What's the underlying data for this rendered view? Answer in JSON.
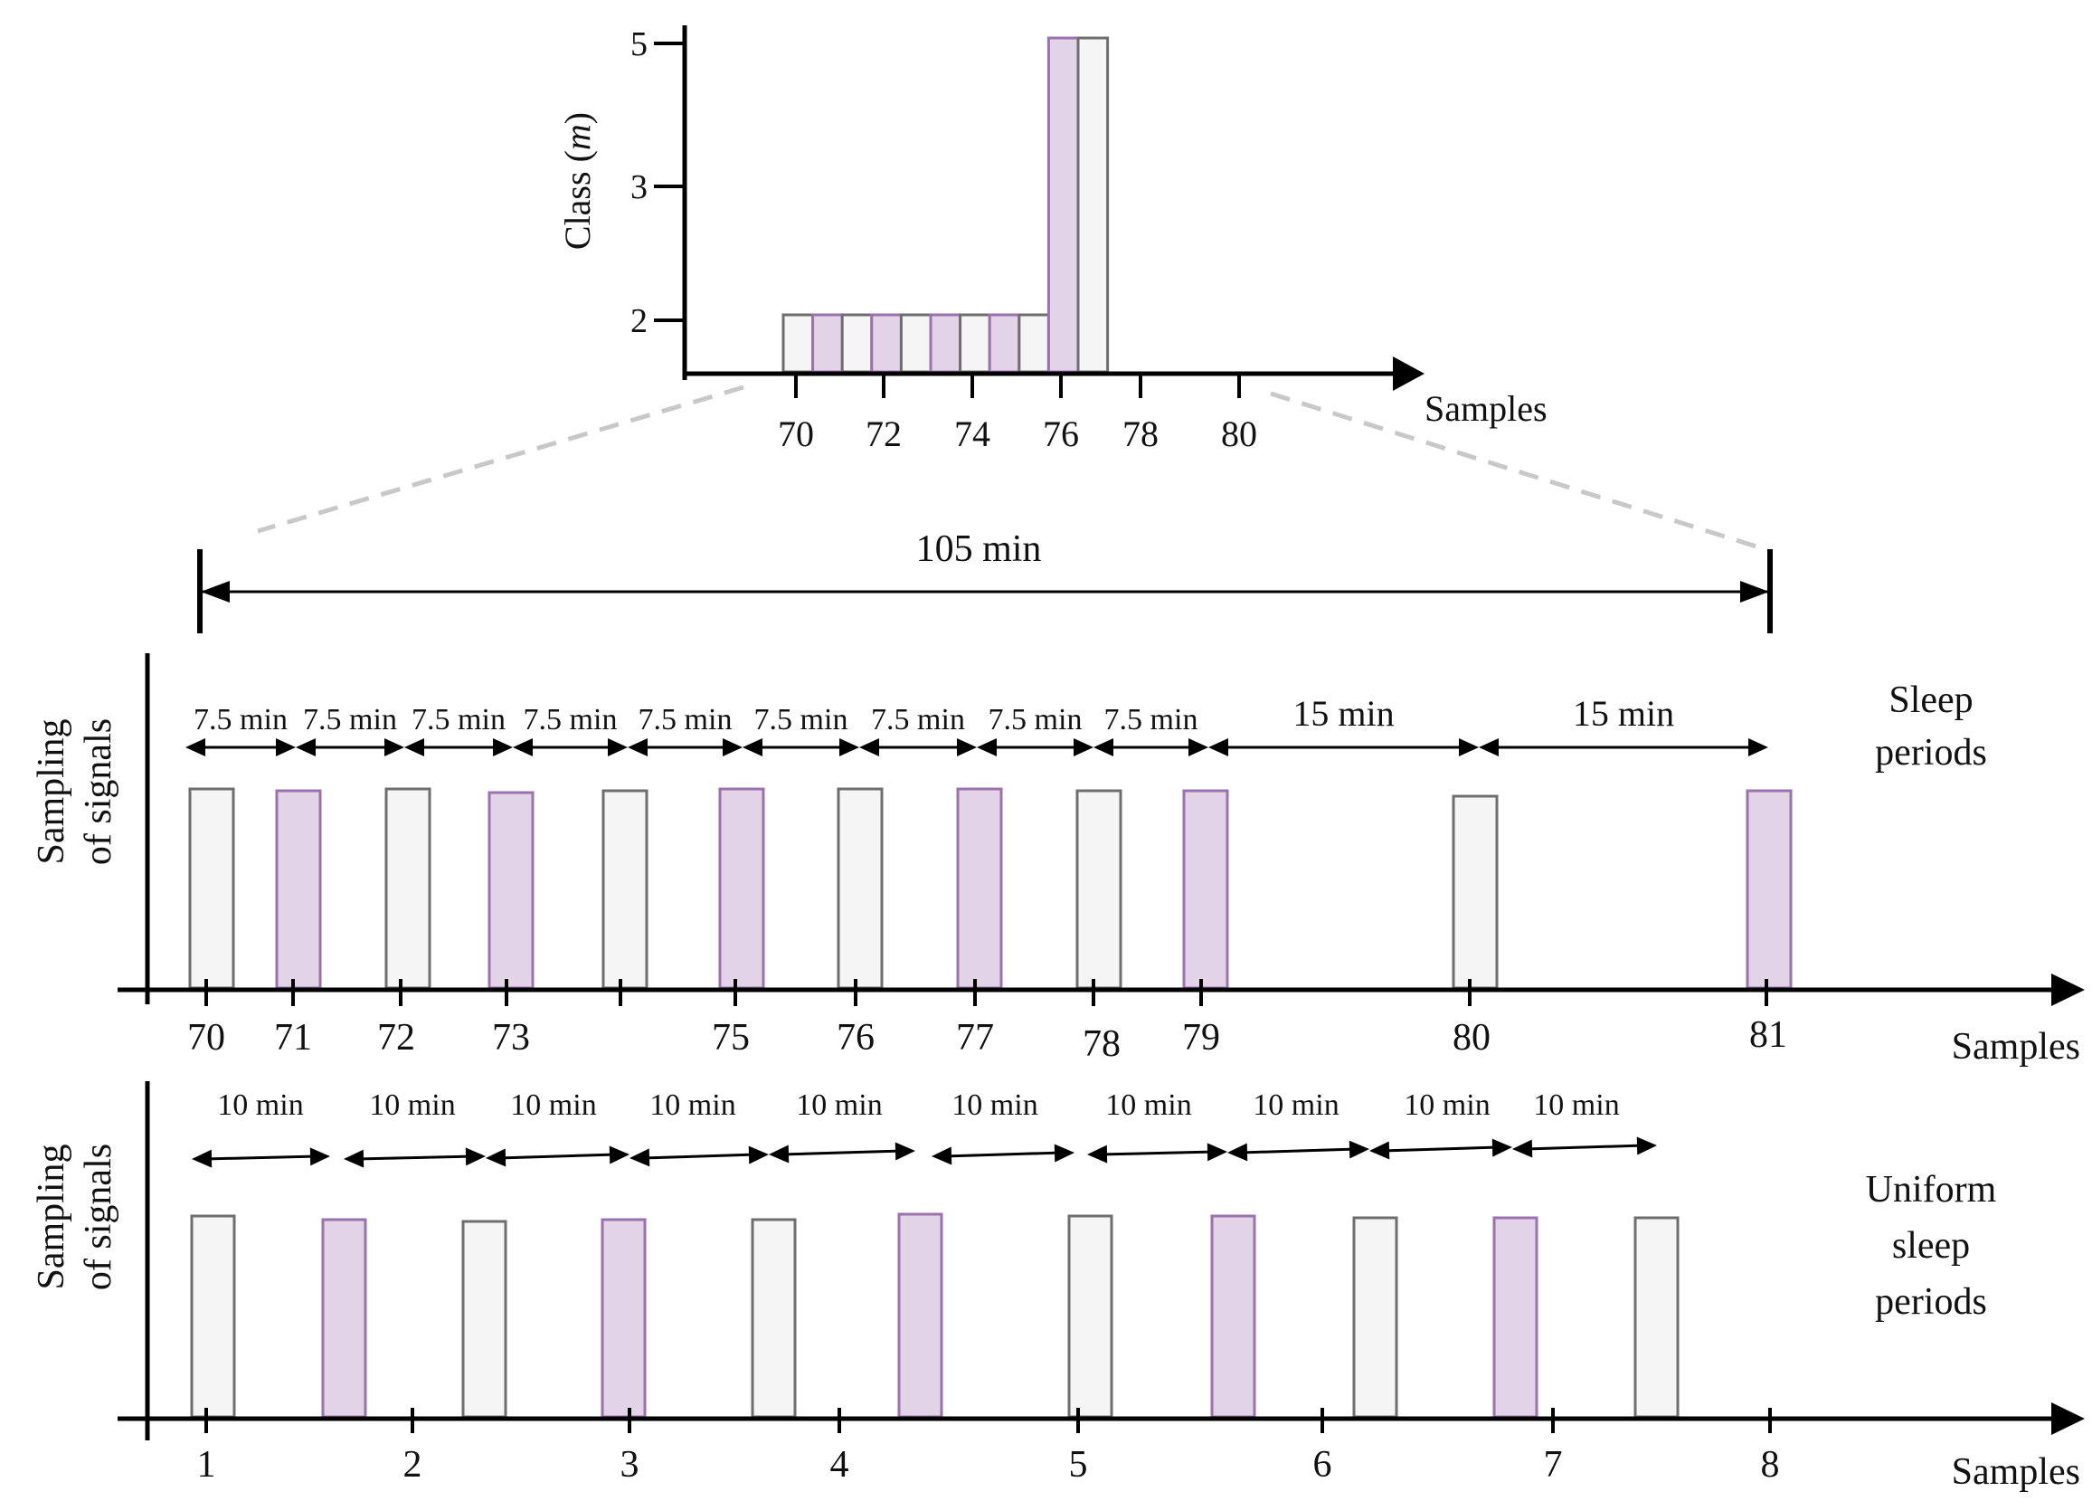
{
  "colors": {
    "axis": "#000000",
    "white_fill": "#f5f5f5",
    "white_stroke": "#6e6e6e",
    "purple_fill": "#e2d3e7",
    "purple_stroke": "#9b72ad",
    "dash": "#c8c8c8"
  },
  "top_chart": {
    "y_axis_label_main": "Class (",
    "y_axis_label_var": "m",
    "y_axis_label_end": ")",
    "y_ticks": [
      "2",
      "3",
      "5"
    ],
    "x_ticks": [
      "70",
      "72",
      "74",
      "76",
      "78",
      "80"
    ],
    "x_axis_label": "Samples",
    "bars": [
      {
        "class": 2,
        "color": "white"
      },
      {
        "class": 2,
        "color": "purple"
      },
      {
        "class": 2,
        "color": "white"
      },
      {
        "class": 2,
        "color": "purple"
      },
      {
        "class": 2,
        "color": "white"
      },
      {
        "class": 2,
        "color": "purple"
      },
      {
        "class": 2,
        "color": "white"
      },
      {
        "class": 2,
        "color": "purple"
      },
      {
        "class": 2,
        "color": "white"
      },
      {
        "class": 5,
        "color": "purple"
      },
      {
        "class": 5,
        "color": "white"
      }
    ]
  },
  "span": {
    "label": "105 min"
  },
  "sleep_panel": {
    "y_label_line1": "Sampling",
    "y_label_line2": "of signals",
    "side_label_line1": "Sleep",
    "side_label_line2": "periods",
    "x_axis_label": "Samples",
    "interval_labels": [
      "7.5 min",
      "7.5 min",
      "7.5 min",
      "7.5 min",
      "7.5 min",
      "7.5 min",
      "7.5 min",
      "7.5 min",
      "7.5 min",
      "15 min",
      "15 min"
    ],
    "sample_labels": [
      "70",
      "71",
      "72",
      "73",
      "",
      "75",
      "76",
      "77",
      "78",
      "79",
      "80",
      "81"
    ],
    "sample_colors": [
      "white",
      "purple",
      "white",
      "purple",
      "white",
      "purple",
      "white",
      "purple",
      "white",
      "purple",
      "white",
      "purple"
    ]
  },
  "uniform_panel": {
    "y_label_line1": "Sampling",
    "y_label_line2": "of signals",
    "side_label_line1": "Uniform",
    "side_label_line2": "sleep",
    "side_label_line3": "periods",
    "x_axis_label": "Samples",
    "interval_labels": [
      "10 min",
      "10 min",
      "10 min",
      "10 min",
      "10 min",
      "10 min",
      "10 min",
      "10 min",
      "10 min",
      "10 min"
    ],
    "tick_labels": [
      "1",
      "2",
      "3",
      "4",
      "5",
      "6",
      "7",
      "8"
    ],
    "sample_colors": [
      "white",
      "purple",
      "white",
      "purple",
      "white",
      "purple",
      "white",
      "purple",
      "white",
      "purple",
      "white"
    ]
  }
}
